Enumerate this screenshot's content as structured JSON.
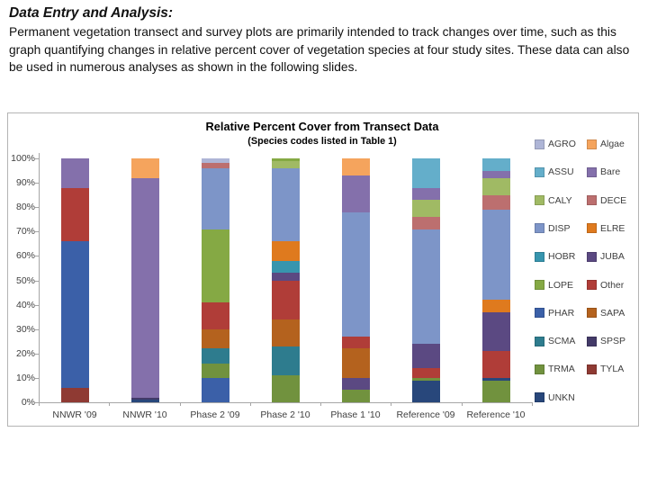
{
  "slide": {
    "heading": "Data Entry and Analysis:",
    "body": "Permanent vegetation transect and survey plots are primarily intended to track changes over time, such as this graph quantifying changes in relative percent cover of vegetation species  at four study sites. These data can also be used in numerous analyses as shown in the following slides."
  },
  "chart_data": {
    "type": "bar",
    "stacked": true,
    "title": "Relative Percent Cover from Transect Data",
    "subtitle": "(Species codes listed in Table 1)",
    "ylabel": "",
    "xlabel": "",
    "ylim": [
      0,
      100
    ],
    "y_ticks": [
      "0%",
      "10%",
      "20%",
      "30%",
      "40%",
      "50%",
      "60%",
      "70%",
      "80%",
      "90%",
      "100%"
    ],
    "grid": false,
    "legend_position": "right",
    "categories": [
      "NNWR '09",
      "NNWR '10",
      "Phase 2 '09",
      "Phase 2 '10",
      "Phase 1 '10",
      "Reference '09",
      "Reference '10"
    ],
    "legend": [
      {
        "code": "AGRO",
        "color": "#AEB5D6"
      },
      {
        "code": "Algae",
        "color": "#F5A45D"
      },
      {
        "code": "ASSU",
        "color": "#64AECA"
      },
      {
        "code": "Bare",
        "color": "#8470AB"
      },
      {
        "code": "CALY",
        "color": "#A0BA64"
      },
      {
        "code": "DECE",
        "color": "#BC6F6F"
      },
      {
        "code": "DISP",
        "color": "#7D95C8"
      },
      {
        "code": "ELRE",
        "color": "#DF7A1E"
      },
      {
        "code": "HOBR",
        "color": "#3795AE"
      },
      {
        "code": "JUBA",
        "color": "#5B4982"
      },
      {
        "code": "LOPE",
        "color": "#85A944"
      },
      {
        "code": "Other",
        "color": "#B03D38"
      },
      {
        "code": "PHAR",
        "color": "#3B60A8"
      },
      {
        "code": "SAPA",
        "color": "#B4621E"
      },
      {
        "code": "SCMA",
        "color": "#2E7C8E"
      },
      {
        "code": "SPSP",
        "color": "#433A68"
      },
      {
        "code": "TRMA",
        "color": "#71923E"
      },
      {
        "code": "TYLA",
        "color": "#8F3A33"
      },
      {
        "code": "UNKN",
        "color": "#28477B"
      }
    ],
    "bars": [
      {
        "category": "NNWR '09",
        "segments": [
          {
            "code": "TYLA",
            "value": 6
          },
          {
            "code": "PHAR",
            "value": 60
          },
          {
            "code": "Other",
            "value": 22
          },
          {
            "code": "Bare",
            "value": 12
          }
        ]
      },
      {
        "category": "NNWR '10",
        "segments": [
          {
            "code": "UNKN",
            "value": 1
          },
          {
            "code": "SPSP",
            "value": 1
          },
          {
            "code": "Bare",
            "value": 90
          },
          {
            "code": "Algae",
            "value": 8
          }
        ]
      },
      {
        "category": "Phase 2 '09",
        "segments": [
          {
            "code": "PHAR",
            "value": 10
          },
          {
            "code": "TRMA",
            "value": 6
          },
          {
            "code": "SCMA",
            "value": 6
          },
          {
            "code": "SAPA",
            "value": 8
          },
          {
            "code": "Other",
            "value": 11
          },
          {
            "code": "LOPE",
            "value": 30
          },
          {
            "code": "DISP",
            "value": 25
          },
          {
            "code": "DECE",
            "value": 2
          },
          {
            "code": "AGRO",
            "value": 2
          }
        ]
      },
      {
        "category": "Phase 2 '10",
        "segments": [
          {
            "code": "TRMA",
            "value": 11
          },
          {
            "code": "SCMA",
            "value": 12
          },
          {
            "code": "SAPA",
            "value": 11
          },
          {
            "code": "Other",
            "value": 16
          },
          {
            "code": "JUBA",
            "value": 3
          },
          {
            "code": "HOBR",
            "value": 5
          },
          {
            "code": "ELRE",
            "value": 8
          },
          {
            "code": "DISP",
            "value": 30
          },
          {
            "code": "CALY",
            "value": 3
          },
          {
            "code": "LOPE",
            "value": 1
          }
        ]
      },
      {
        "category": "Phase 1 '10",
        "segments": [
          {
            "code": "TRMA",
            "value": 5
          },
          {
            "code": "JUBA",
            "value": 5
          },
          {
            "code": "SAPA",
            "value": 12
          },
          {
            "code": "Other",
            "value": 5
          },
          {
            "code": "DISP",
            "value": 51
          },
          {
            "code": "Bare",
            "value": 15
          },
          {
            "code": "Algae",
            "value": 7
          }
        ]
      },
      {
        "category": "Reference '09",
        "segments": [
          {
            "code": "UNKN",
            "value": 9
          },
          {
            "code": "TRMA",
            "value": 1
          },
          {
            "code": "Other",
            "value": 4
          },
          {
            "code": "JUBA",
            "value": 10
          },
          {
            "code": "DISP",
            "value": 47
          },
          {
            "code": "DECE",
            "value": 5
          },
          {
            "code": "CALY",
            "value": 7
          },
          {
            "code": "Bare",
            "value": 5
          },
          {
            "code": "ASSU",
            "value": 12
          }
        ]
      },
      {
        "category": "Reference '10",
        "segments": [
          {
            "code": "TRMA",
            "value": 9
          },
          {
            "code": "UNKN",
            "value": 1
          },
          {
            "code": "Other",
            "value": 11
          },
          {
            "code": "JUBA",
            "value": 16
          },
          {
            "code": "ELRE",
            "value": 5
          },
          {
            "code": "DISP",
            "value": 37
          },
          {
            "code": "DECE",
            "value": 6
          },
          {
            "code": "CALY",
            "value": 7
          },
          {
            "code": "Bare",
            "value": 3
          },
          {
            "code": "ASSU",
            "value": 5
          }
        ]
      }
    ]
  }
}
